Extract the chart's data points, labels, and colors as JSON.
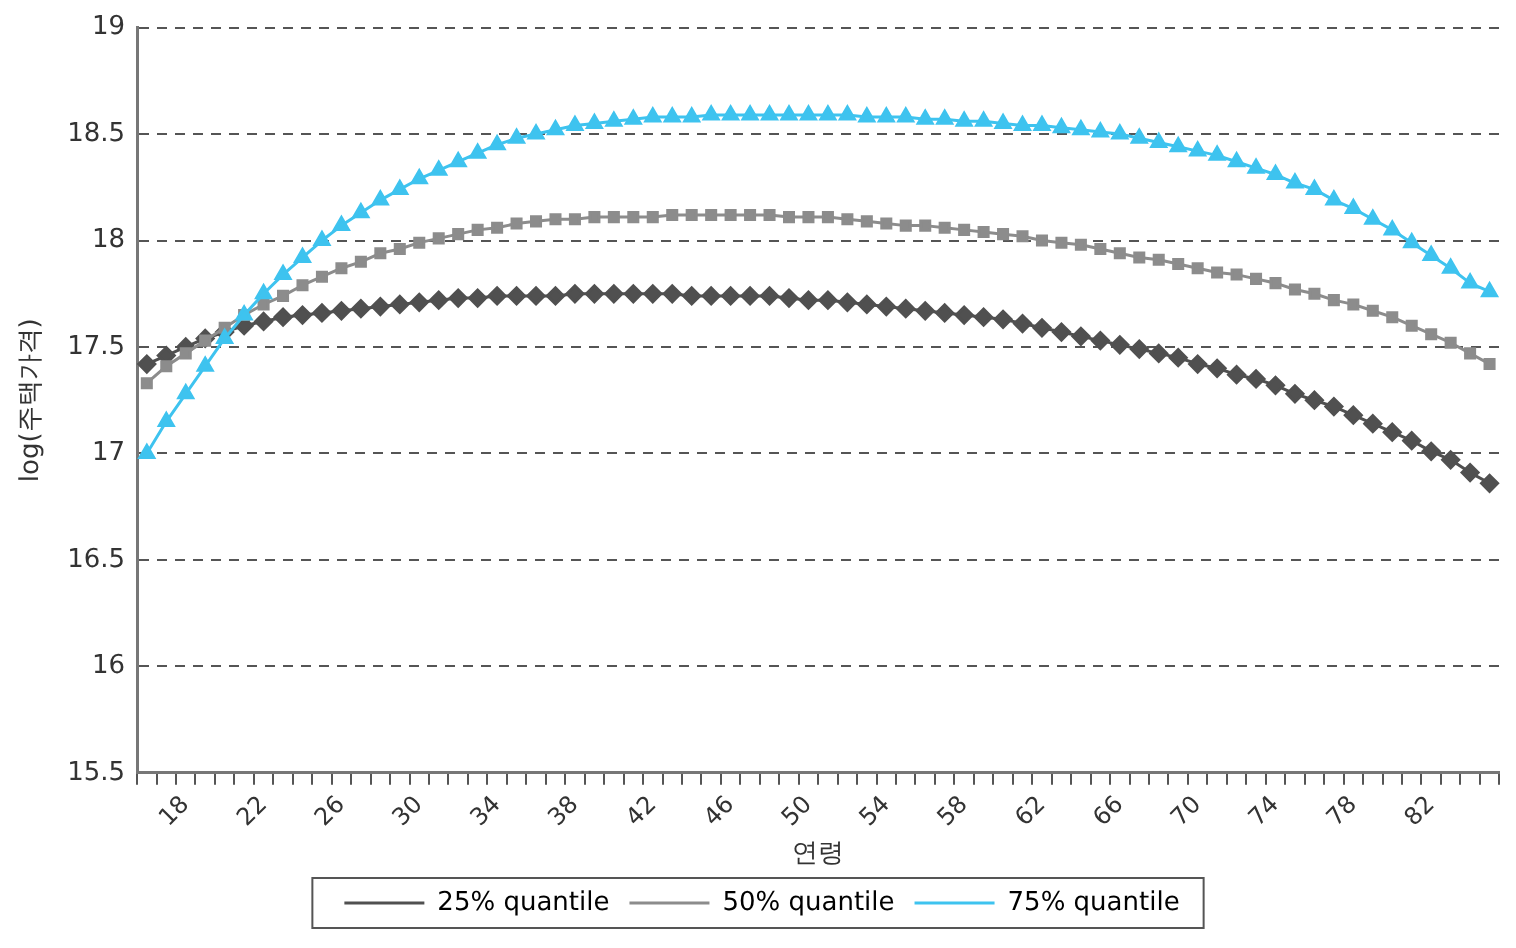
{
  "chart_data": {
    "type": "line",
    "xlabel": "연령",
    "ylabel": "log(주택가격)",
    "categories": [
      null,
      null,
      "18",
      null,
      null,
      null,
      "22",
      null,
      null,
      null,
      "26",
      null,
      null,
      null,
      "30",
      null,
      null,
      null,
      "34",
      null,
      null,
      null,
      "38",
      null,
      null,
      null,
      "42",
      null,
      null,
      null,
      "46",
      null,
      null,
      null,
      "50",
      null,
      null,
      null,
      "54",
      null,
      null,
      null,
      "58",
      null,
      null,
      null,
      "62",
      null,
      null,
      null,
      "66",
      null,
      null,
      null,
      "70",
      null,
      null,
      null,
      "74",
      null,
      null,
      null,
      "78",
      null,
      null,
      null,
      "82",
      null,
      null,
      null
    ],
    "series": [
      {
        "name": "25% quantile",
        "color": "#505050",
        "marker": "diamond",
        "values": [
          17.42,
          17.46,
          17.5,
          17.54,
          17.57,
          17.6,
          17.62,
          17.64,
          17.65,
          17.66,
          17.67,
          17.68,
          17.69,
          17.7,
          17.71,
          17.72,
          17.73,
          17.73,
          17.74,
          17.74,
          17.74,
          17.74,
          17.75,
          17.75,
          17.75,
          17.75,
          17.75,
          17.75,
          17.74,
          17.74,
          17.74,
          17.74,
          17.74,
          17.73,
          17.72,
          17.72,
          17.71,
          17.7,
          17.69,
          17.68,
          17.67,
          17.66,
          17.65,
          17.64,
          17.63,
          17.61,
          17.59,
          17.57,
          17.55,
          17.53,
          17.51,
          17.49,
          17.47,
          17.45,
          17.42,
          17.4,
          17.37,
          17.35,
          17.32,
          17.28,
          17.25,
          17.22,
          17.18,
          17.14,
          17.1,
          17.06,
          17.01,
          16.97,
          16.91,
          16.86
        ]
      },
      {
        "name": "50% quantile",
        "color": "#8c8c8c",
        "marker": "square",
        "values": [
          17.33,
          17.41,
          17.47,
          17.53,
          17.59,
          17.65,
          17.7,
          17.74,
          17.79,
          17.83,
          17.87,
          17.9,
          17.94,
          17.96,
          17.99,
          18.01,
          18.03,
          18.05,
          18.06,
          18.08,
          18.09,
          18.1,
          18.1,
          18.11,
          18.11,
          18.11,
          18.11,
          18.12,
          18.12,
          18.12,
          18.12,
          18.12,
          18.12,
          18.11,
          18.11,
          18.11,
          18.1,
          18.09,
          18.08,
          18.07,
          18.07,
          18.06,
          18.05,
          18.04,
          18.03,
          18.02,
          18.0,
          17.99,
          17.98,
          17.96,
          17.94,
          17.92,
          17.91,
          17.89,
          17.87,
          17.85,
          17.84,
          17.82,
          17.8,
          17.77,
          17.75,
          17.72,
          17.7,
          17.67,
          17.64,
          17.6,
          17.56,
          17.52,
          17.47,
          17.42
        ]
      },
      {
        "name": "75% quantile",
        "color": "#3ec3ef",
        "marker": "triangle",
        "values": [
          17.0,
          17.15,
          17.28,
          17.41,
          17.54,
          17.65,
          17.75,
          17.84,
          17.92,
          18.0,
          18.07,
          18.13,
          18.19,
          18.24,
          18.29,
          18.33,
          18.37,
          18.41,
          18.45,
          18.48,
          18.5,
          18.52,
          18.54,
          18.55,
          18.56,
          18.57,
          18.58,
          18.58,
          18.58,
          18.59,
          18.59,
          18.59,
          18.59,
          18.59,
          18.59,
          18.59,
          18.59,
          18.58,
          18.58,
          18.58,
          18.57,
          18.57,
          18.56,
          18.56,
          18.55,
          18.54,
          18.54,
          18.53,
          18.52,
          18.51,
          18.5,
          18.48,
          18.46,
          18.44,
          18.42,
          18.4,
          18.37,
          18.34,
          18.31,
          18.27,
          18.24,
          18.19,
          18.15,
          18.1,
          18.05,
          17.99,
          17.93,
          17.87,
          17.8,
          17.76
        ]
      }
    ],
    "ylim": [
      15.5,
      19
    ],
    "yticks": [
      15.5,
      16,
      16.5,
      17,
      17.5,
      18,
      18.5,
      19
    ],
    "grid": "y",
    "line_style": "solid",
    "legend": "bottom"
  }
}
